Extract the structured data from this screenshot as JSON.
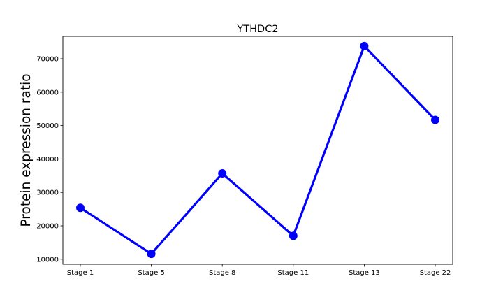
{
  "chart_data": {
    "type": "line",
    "title": "YTHDC2",
    "xlabel": "",
    "ylabel": "Protein expression ratio",
    "categories": [
      "Stage 1",
      "Stage 5",
      "Stage 8",
      "Stage 11",
      "Stage 13",
      "Stage 22"
    ],
    "series": [
      {
        "values": [
          25400,
          11600,
          35700,
          17000,
          73800,
          51700
        ],
        "color": "#0000ff",
        "marker": "circle"
      }
    ],
    "y_ticks": [
      10000,
      20000,
      30000,
      40000,
      50000,
      60000,
      70000
    ],
    "y_tick_labels": [
      "10000",
      "20000",
      "30000",
      "40000",
      "50000",
      "60000",
      "70000"
    ],
    "ylim": [
      8500,
      76700
    ],
    "grid": false,
    "legend": "none"
  }
}
